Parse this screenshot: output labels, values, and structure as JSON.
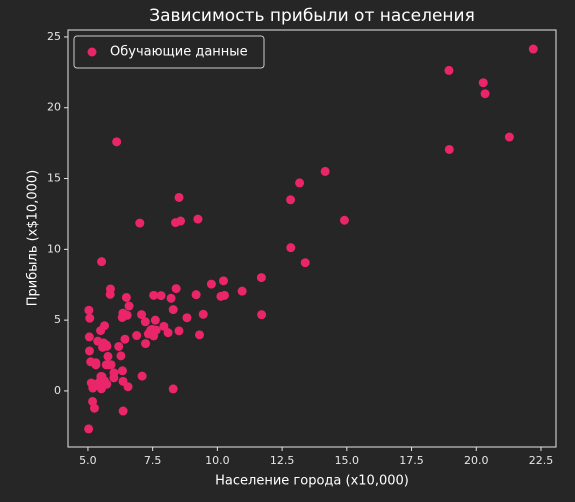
{
  "chart_data": {
    "type": "scatter",
    "title": "Зависимость прибыли от населения",
    "xlabel": "Население города (x10,000)",
    "ylabel": "Прибыль (x$10,000)",
    "legend": "upper left",
    "xlim": [
      4.23,
      23.08
    ],
    "ylim": [
      -3.96,
      25.49
    ],
    "xticks": [
      {
        "value": 5,
        "label": "5.0"
      },
      {
        "value": 7.5,
        "label": "7.5"
      },
      {
        "value": 10,
        "label": "10.0"
      },
      {
        "value": 12.5,
        "label": "12.5"
      },
      {
        "value": 15,
        "label": "15.0"
      },
      {
        "value": 17.5,
        "label": "17.5"
      },
      {
        "value": 20,
        "label": "20.0"
      },
      {
        "value": 22.5,
        "label": "22.5"
      }
    ],
    "yticks": [
      0,
      5,
      10,
      15,
      20,
      25
    ],
    "x": [
      6.1101,
      5.5277,
      8.5186,
      7.0032,
      5.8598,
      8.3829,
      7.4764,
      8.5781,
      6.4862,
      5.0546,
      5.7107,
      14.164,
      5.734,
      8.4084,
      5.6407,
      5.3794,
      6.3654,
      5.1301,
      6.4296,
      7.0708,
      6.1891,
      20.27,
      5.4901,
      6.3261,
      5.5649,
      18.945,
      12.828,
      10.957,
      13.176,
      22.203,
      5.2524,
      6.5894,
      9.2482,
      5.8918,
      8.2111,
      7.9334,
      8.0959,
      5.6063,
      12.836,
      6.3534,
      5.4069,
      6.8825,
      11.708,
      5.7737,
      7.8247,
      7.0931,
      5.0702,
      5.8014,
      11.7,
      5.5416,
      7.5402,
      5.3077,
      7.4239,
      7.6031,
      6.3328,
      6.3589,
      6.2742,
      5.6397,
      9.3102,
      9.4536,
      8.8254,
      5.1793,
      21.279,
      14.908,
      18.959,
      7.2182,
      8.2951,
      10.236,
      5.4994,
      20.341,
      10.136,
      7.3345,
      6.0062,
      7.2259,
      5.0269,
      6.5479,
      7.5386,
      5.0365,
      10.274,
      5.1077,
      5.7292,
      5.1884,
      6.3557,
      9.7687,
      6.5159,
      8.5172,
      9.1802,
      6.002,
      5.5204,
      5.0594,
      5.7077,
      7.6366,
      5.8707,
      5.3054,
      8.2934,
      13.394,
      5.4369
    ],
    "series": [
      {
        "name": "Обучающие данные",
        "color": "#ea2569",
        "values": [
          17.592,
          9.1302,
          13.662,
          11.854,
          6.8233,
          11.886,
          4.3483,
          12,
          6.5987,
          3.8166,
          3.2522,
          15.505,
          3.1551,
          7.2258,
          0.71618,
          3.5129,
          5.3048,
          0.56077,
          3.6518,
          5.3893,
          3.1386,
          21.767,
          4.263,
          5.1875,
          3.0825,
          22.638,
          13.501,
          7.0467,
          14.692,
          24.147,
          -1.22,
          5.9966,
          12.134,
          1.8495,
          6.5426,
          4.5623,
          4.1164,
          3.3928,
          10.117,
          5.4974,
          0.55657,
          3.9115,
          5.3854,
          2.4406,
          6.7318,
          1.0463,
          5.1337,
          1.844,
          8.0043,
          1.0179,
          6.7504,
          1.8396,
          4.2885,
          4.9981,
          1.4233,
          -1.4211,
          2.4756,
          4.6042,
          3.9624,
          5.4141,
          5.1694,
          -0.74279,
          17.929,
          12.054,
          17.054,
          4.8852,
          5.7442,
          7.7754,
          1.0173,
          20.992,
          6.6799,
          4.0259,
          1.2784,
          3.3411,
          -2.6807,
          0.29678,
          3.8845,
          5.7014,
          6.7526,
          2.0576,
          0.47953,
          0.20421,
          0.67861,
          7.5435,
          5.3436,
          4.2415,
          6.7981,
          0.92695,
          0.152,
          2.8214,
          1.8451,
          4.2959,
          7.2029,
          1.9869,
          0.14454,
          9.0551,
          0.61705
        ]
      }
    ]
  }
}
